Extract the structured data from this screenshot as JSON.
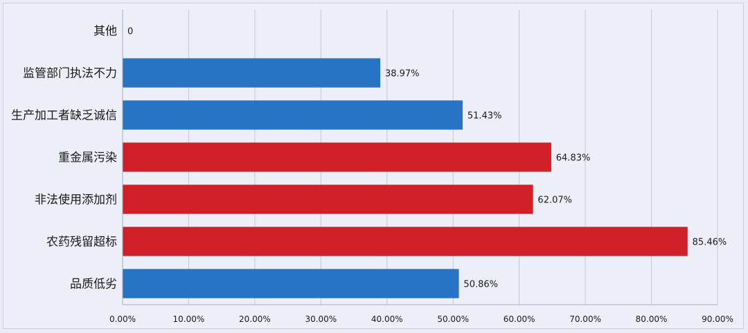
{
  "chart_data": {
    "type": "bar",
    "orientation": "horizontal",
    "categories": [
      "其他",
      "监管部门执法不力",
      "生产加工者缺乏诚信",
      "重金属污染",
      "非法使用添加剂",
      "农药残留超标",
      "品质低劣"
    ],
    "values": [
      0,
      38.97,
      51.43,
      64.83,
      62.07,
      85.46,
      50.86
    ],
    "value_labels": [
      "0",
      "38.97%",
      "51.43%",
      "64.83%",
      "62.07%",
      "85.46%",
      "50.86%"
    ],
    "bar_colors": [
      "#2874c4",
      "#2874c4",
      "#2874c4",
      "#d01f27",
      "#d01f27",
      "#d01f27",
      "#2874c4"
    ],
    "xlim": [
      0,
      90
    ],
    "xticks": [
      0,
      10,
      20,
      30,
      40,
      50,
      60,
      70,
      80,
      90
    ],
    "xtick_labels": [
      "0.00%",
      "10.00%",
      "20.00%",
      "30.00%",
      "40.00%",
      "50.00%",
      "60.00%",
      "70.00%",
      "80.00%",
      "90.00%"
    ],
    "grid": "vertical",
    "legend": "none",
    "title": "",
    "xlabel": "",
    "ylabel": ""
  }
}
